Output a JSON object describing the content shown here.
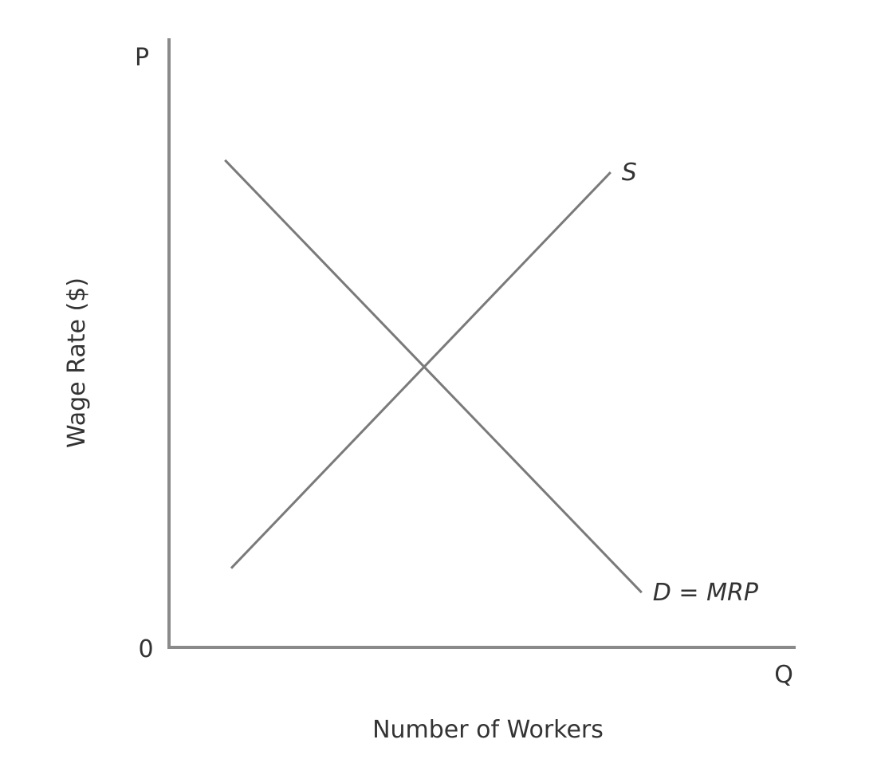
{
  "chart_data": {
    "type": "line",
    "title": "",
    "xlabel": "Number of Workers",
    "ylabel": "Wage Rate ($)",
    "x_axis_end_label": "Q",
    "y_axis_end_label": "P",
    "origin_label": "0",
    "xlim": [
      0,
      100
    ],
    "ylim": [
      0,
      100
    ],
    "grid": false,
    "legend": "none",
    "series": [
      {
        "name": "D = MRP",
        "color": "#7a7a7a",
        "points": [
          {
            "x": 9,
            "y": 80
          },
          {
            "x": 76,
            "y": 9
          }
        ]
      },
      {
        "name": "S",
        "color": "#7a7a7a",
        "points": [
          {
            "x": 10,
            "y": 13
          },
          {
            "x": 71,
            "y": 78
          }
        ]
      }
    ]
  }
}
